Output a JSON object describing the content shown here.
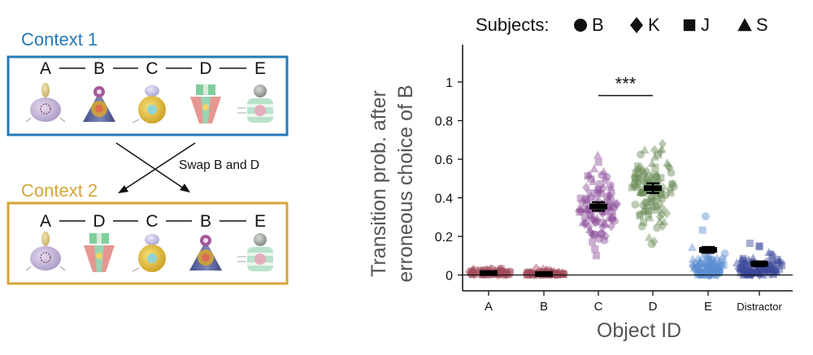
{
  "diagram": {
    "context1": {
      "title": "Context 1",
      "letters": [
        "A",
        "B",
        "C",
        "D",
        "E"
      ],
      "objects": [
        "object-a",
        "object-b",
        "object-c",
        "object-d",
        "object-e"
      ]
    },
    "swap_label": "Swap B and D",
    "context2": {
      "title": "Context 2",
      "letters": [
        "A",
        "D",
        "C",
        "B",
        "E"
      ],
      "objects": [
        "object-a",
        "object-d",
        "object-c",
        "object-b",
        "object-e"
      ]
    },
    "colors": {
      "context1": "#2479b8",
      "context2": "#d6a537"
    }
  },
  "legend": {
    "title": "Subjects:",
    "items": [
      {
        "shape": "circle",
        "label": "B"
      },
      {
        "shape": "diamond",
        "label": "K"
      },
      {
        "shape": "square",
        "label": "J"
      },
      {
        "shape": "triangle",
        "label": "S"
      }
    ]
  },
  "chart_data": {
    "type": "scatter",
    "ylabel_lines": [
      "Transition prob. after",
      "erroneous choice of B"
    ],
    "xlabel": "Object ID",
    "categories": [
      "A",
      "B",
      "C",
      "D",
      "E",
      "Distractor"
    ],
    "ylim": [
      0,
      1.1
    ],
    "yticks": [
      0,
      0.2,
      0.4,
      0.6,
      0.8,
      1
    ],
    "ytick_labels": [
      "0",
      "0.2",
      "0.4",
      "0.6",
      "0.8",
      "1"
    ],
    "means": [
      0.01,
      0.005,
      0.355,
      0.45,
      0.13,
      0.058
    ],
    "sem": [
      0.005,
      0.004,
      0.022,
      0.025,
      0.015,
      0.012
    ],
    "category_colors": [
      "#a24b5a",
      "#a24b5a",
      "#8b4e9a",
      "#6b8c56",
      "#5b8fd1",
      "#3b4a99"
    ],
    "significance": {
      "from": "C",
      "to": "D",
      "label": "***",
      "y": 0.93
    },
    "grid": false
  }
}
